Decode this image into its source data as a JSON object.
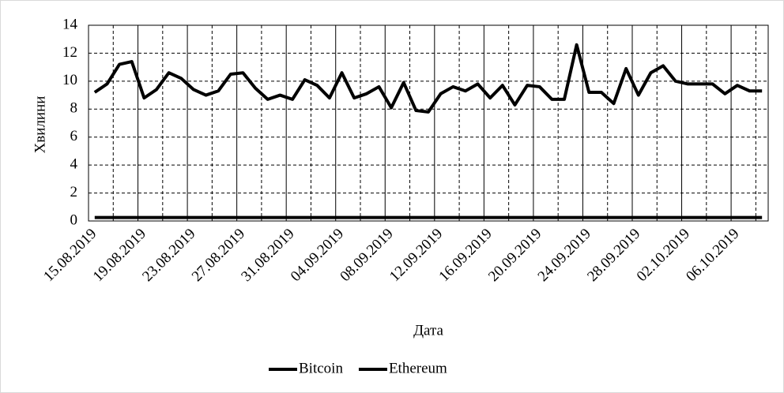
{
  "chart_data": {
    "type": "line",
    "y_label": "Хвилини",
    "x_label": "Дата",
    "categories": [
      "15.08.2019",
      null,
      null,
      null,
      "19.08.2019",
      null,
      null,
      null,
      "23.08.2019",
      null,
      null,
      null,
      "27.08.2019",
      null,
      null,
      null,
      "31.08.2019",
      null,
      null,
      null,
      "04.09.2019",
      null,
      null,
      null,
      "08.09.2019",
      null,
      null,
      null,
      "12.09.2019",
      null,
      null,
      null,
      "16.09.2019",
      null,
      null,
      null,
      "20.09.2019",
      null,
      null,
      null,
      "24.09.2019",
      null,
      null,
      null,
      "28.09.2019",
      null,
      null,
      null,
      "02.10.2019",
      null,
      null,
      null,
      "06.10.2019",
      null,
      null
    ],
    "series": [
      {
        "name": "Bitcoin",
        "color": "#000000",
        "values": [
          9.2,
          9.8,
          11.2,
          11.4,
          8.8,
          9.4,
          10.6,
          10.2,
          9.4,
          9.0,
          9.3,
          10.5,
          10.6,
          9.5,
          8.7,
          9.0,
          8.7,
          10.1,
          9.7,
          8.8,
          10.6,
          8.8,
          9.1,
          9.6,
          8.1,
          9.9,
          7.9,
          7.8,
          9.1,
          9.6,
          9.3,
          9.8,
          8.8,
          9.7,
          8.3,
          9.7,
          9.6,
          8.7,
          8.7,
          12.6,
          9.2,
          9.2,
          8.4,
          10.9,
          9.0,
          10.6,
          11.1,
          10.0,
          9.8,
          9.8,
          9.8,
          9.1,
          9.7,
          9.3,
          9.3
        ]
      },
      {
        "name": "Ethereum",
        "color": "#000000",
        "values": [
          0.25,
          0.25,
          0.25,
          0.25,
          0.25,
          0.25,
          0.25,
          0.25,
          0.25,
          0.25,
          0.25,
          0.25,
          0.25,
          0.25,
          0.25,
          0.25,
          0.25,
          0.25,
          0.25,
          0.25,
          0.25,
          0.25,
          0.25,
          0.25,
          0.25,
          0.25,
          0.25,
          0.25,
          0.25,
          0.25,
          0.25,
          0.25,
          0.25,
          0.25,
          0.25,
          0.25,
          0.25,
          0.25,
          0.25,
          0.25,
          0.25,
          0.25,
          0.25,
          0.25,
          0.25,
          0.25,
          0.25,
          0.25,
          0.25,
          0.25,
          0.25,
          0.25,
          0.25,
          0.25,
          0.25
        ]
      }
    ],
    "ylim": [
      0,
      14
    ],
    "yticks": [
      0,
      2,
      4,
      6,
      8,
      10,
      12,
      14
    ],
    "grid": true,
    "legend": "bottom"
  }
}
